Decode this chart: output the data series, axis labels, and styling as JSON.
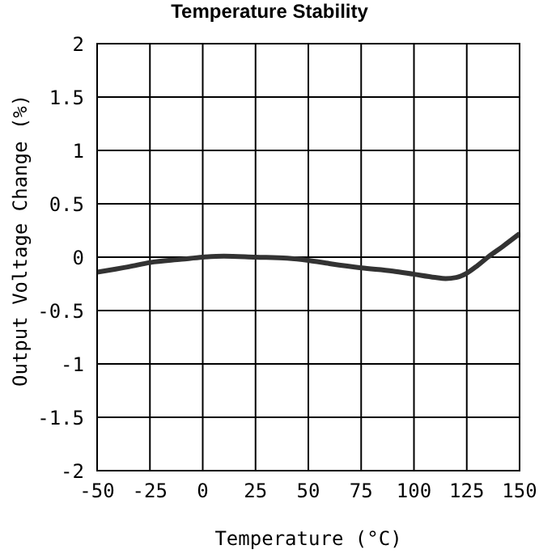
{
  "chart_data": {
    "type": "line",
    "title": "Temperature Stability",
    "xlabel": "Temperature (°C)",
    "ylabel": "Output Voltage Change (%)",
    "x": [
      -50,
      -35,
      -25,
      -10,
      0,
      10,
      25,
      40,
      50,
      60,
      75,
      90,
      100,
      110,
      115,
      120,
      125,
      130,
      135,
      142,
      150
    ],
    "series": [
      {
        "color": "#333333",
        "values": [
          -0.14,
          -0.09,
          -0.05,
          -0.02,
          0,
          0.01,
          0,
          -0.01,
          -0.03,
          -0.06,
          -0.1,
          -0.13,
          -0.16,
          -0.19,
          -0.2,
          -0.19,
          -0.15,
          -0.08,
          0,
          0.1,
          0.22
        ]
      }
    ],
    "xlim": [
      -50,
      150
    ],
    "xticks": [
      -50,
      -25,
      0,
      25,
      50,
      75,
      100,
      125,
      150
    ],
    "ylim": [
      -2,
      2
    ],
    "yticks": [
      -2,
      -1.5,
      -1,
      -0.5,
      0,
      0.5,
      1,
      1.5,
      2
    ],
    "grid": true,
    "marker": "none",
    "line_style": "solid"
  }
}
